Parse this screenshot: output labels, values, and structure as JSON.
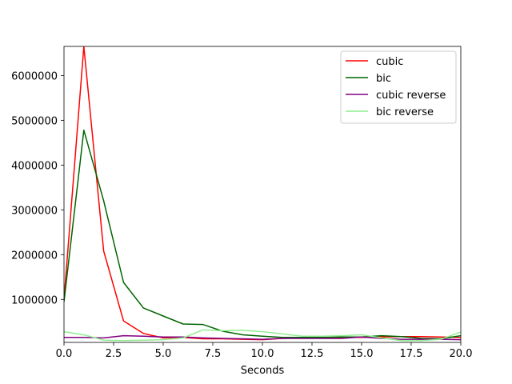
{
  "chart_data": {
    "type": "line",
    "title": "",
    "xlabel": "Seconds",
    "ylabel": "",
    "xlim": [
      0,
      20
    ],
    "ylim": [
      40000,
      6650000
    ],
    "xticks": [
      0,
      2.5,
      5,
      7.5,
      10,
      12.5,
      15,
      17.5,
      20
    ],
    "xtick_labels": [
      "0.0",
      "2.5",
      "5.0",
      "7.5",
      "10.0",
      "12.5",
      "15.0",
      "17.5",
      "20.0"
    ],
    "yticks": [
      1000000,
      2000000,
      3000000,
      4000000,
      5000000,
      6000000
    ],
    "ytick_labels": [
      "1000000",
      "2000000",
      "3000000",
      "4000000",
      "5000000",
      "6000000"
    ],
    "grid": false,
    "legend_position": "top-right",
    "x": [
      0,
      1,
      2,
      3,
      4,
      5,
      6,
      7,
      8,
      9,
      10,
      11,
      12,
      13,
      14,
      15,
      16,
      17,
      18,
      19,
      20
    ],
    "series": [
      {
        "name": "cubic",
        "color": "#ff0000",
        "values": [
          1000000,
          6650000,
          2080000,
          520000,
          240000,
          140000,
          150000,
          120000,
          120000,
          110000,
          100000,
          130000,
          140000,
          140000,
          150000,
          150000,
          160000,
          170000,
          170000,
          160000,
          150000
        ]
      },
      {
        "name": "bic",
        "color": "#006400",
        "values": [
          950000,
          4780000,
          3200000,
          1380000,
          810000,
          630000,
          450000,
          440000,
          290000,
          210000,
          180000,
          150000,
          150000,
          150000,
          160000,
          160000,
          190000,
          170000,
          130000,
          120000,
          190000
        ]
      },
      {
        "name": "cubic reverse",
        "color": "#800080",
        "values": [
          150000,
          150000,
          140000,
          190000,
          180000,
          160000,
          160000,
          140000,
          130000,
          120000,
          110000,
          130000,
          130000,
          130000,
          130000,
          160000,
          130000,
          110000,
          110000,
          110000,
          100000
        ]
      },
      {
        "name": "bic reverse",
        "color": "#90ee90",
        "values": [
          280000,
          210000,
          90000,
          80000,
          90000,
          100000,
          140000,
          320000,
          300000,
          310000,
          280000,
          230000,
          180000,
          180000,
          190000,
          210000,
          140000,
          80000,
          80000,
          110000,
          270000
        ]
      }
    ]
  }
}
